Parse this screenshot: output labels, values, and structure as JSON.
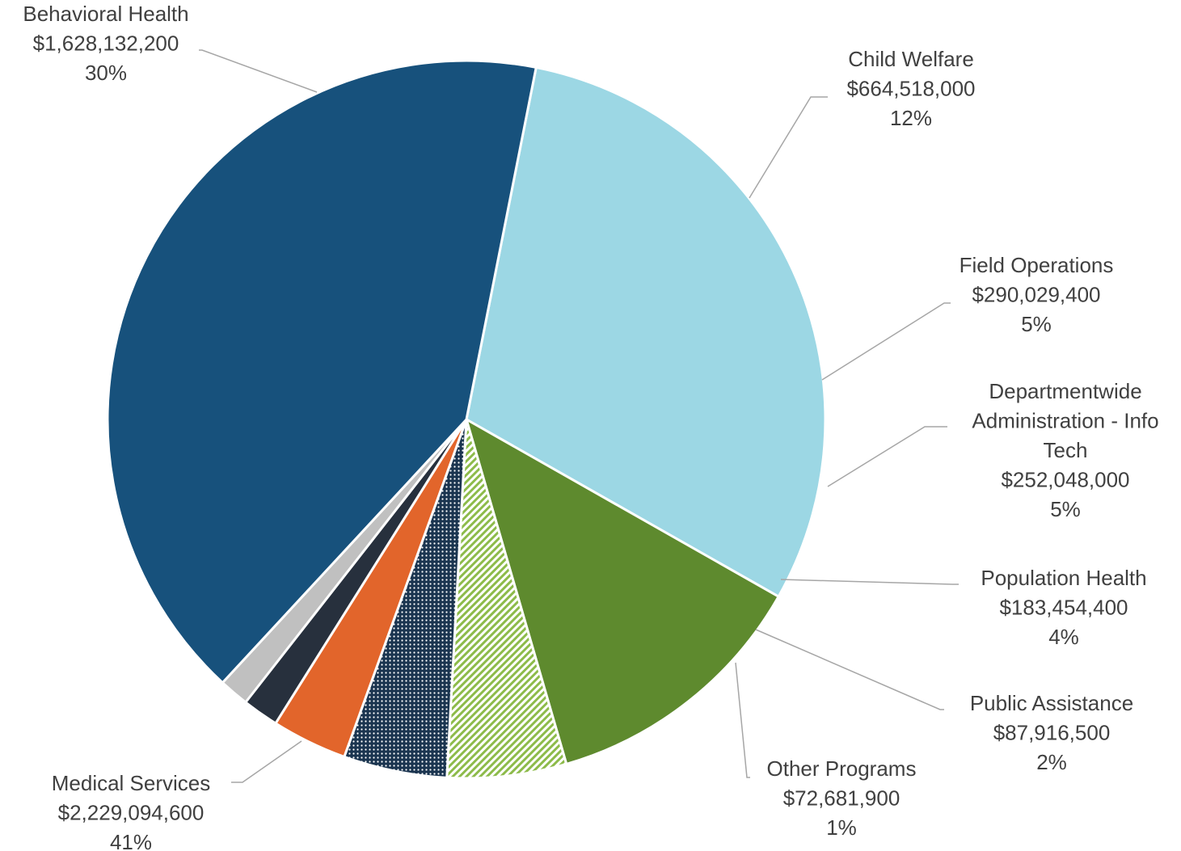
{
  "chart_data": {
    "type": "pie",
    "title": "",
    "start_angle_deg": -78.8,
    "direction": "clockwise",
    "slices": [
      {
        "name": "Behavioral Health",
        "value": 1628132200,
        "value_label": "$1,628,132,200",
        "percent_label": "30%",
        "color": "#9cd7e4",
        "pattern": "solid"
      },
      {
        "name": "Child Welfare",
        "value": 664518000,
        "value_label": "$664,518,000",
        "percent_label": "12%",
        "color": "#5e8a2e",
        "pattern": "solid"
      },
      {
        "name": "Field Operations",
        "value": 290029400,
        "value_label": "$290,029,400",
        "percent_label": "5%",
        "color": "#8dbb4a",
        "pattern": "diagonal-hatch"
      },
      {
        "name": "Departmentwide Administration - Info Tech",
        "name_lines": [
          "Departmentwide",
          "Administration - Info",
          "Tech"
        ],
        "value": 252048000,
        "value_label": "$252,048,000",
        "percent_label": "5%",
        "color": "#1b3550",
        "pattern": "dotted"
      },
      {
        "name": "Population Health",
        "value": 183454400,
        "value_label": "$183,454,400",
        "percent_label": "4%",
        "color": "#e2652b",
        "pattern": "solid"
      },
      {
        "name": "Public Assistance",
        "value": 87916500,
        "value_label": "$87,916,500",
        "percent_label": "2%",
        "color": "#27303d",
        "pattern": "solid"
      },
      {
        "name": "Other Programs",
        "value": 72681900,
        "value_label": "$72,681,900",
        "percent_label": "1%",
        "color": "#c0c0c0",
        "pattern": "solid"
      },
      {
        "name": "Medical Services",
        "value": 2229094600,
        "value_label": "$2,229,094,600",
        "percent_label": "41%",
        "color": "#17517c",
        "pattern": "solid"
      }
    ]
  }
}
